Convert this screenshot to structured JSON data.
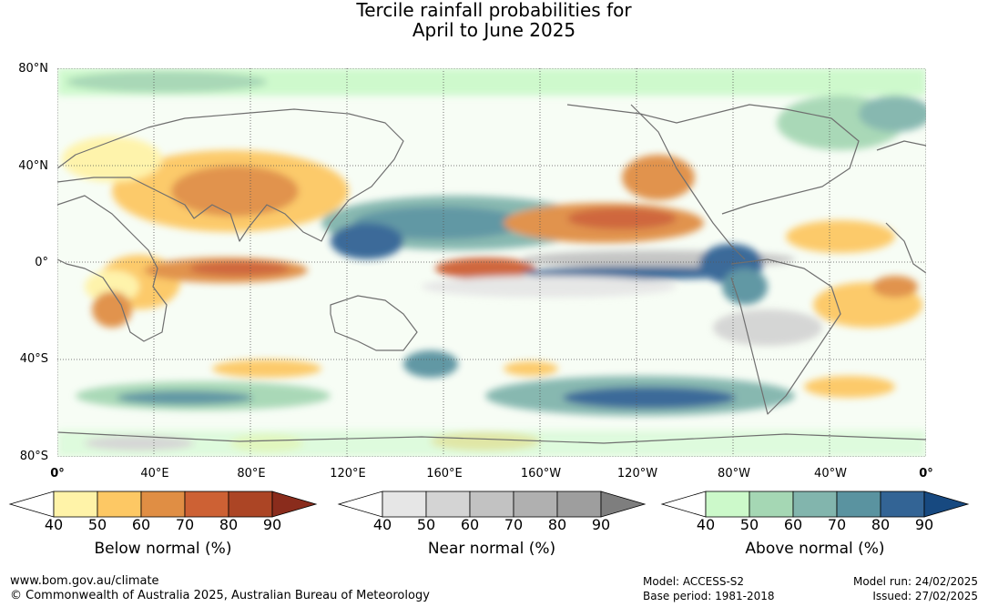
{
  "title_line1": "Tercile rainfall probabilities for",
  "title_line2": "April to June 2025",
  "lat_labels": [
    "80°N",
    "40°N",
    "0°",
    "40°S",
    "80°S"
  ],
  "lon_labels": [
    "0°",
    "40°E",
    "80°E",
    "120°E",
    "160°E",
    "160°W",
    "120°W",
    "80°W",
    "40°W",
    "0°"
  ],
  "legends": [
    {
      "title": "Below normal (%)",
      "ticks": [
        "40",
        "50",
        "60",
        "70",
        "80",
        "90"
      ],
      "colors": [
        "#fff3a8",
        "#fdc864",
        "#e08e44",
        "#cd6134",
        "#ac4525",
        "#8a2c1c"
      ]
    },
    {
      "title": "Near normal (%)",
      "ticks": [
        "40",
        "50",
        "60",
        "70",
        "80",
        "90"
      ],
      "colors": [
        "#e6e6e6",
        "#d4d4d4",
        "#c2c2c2",
        "#b0b0b0",
        "#9e9e9e",
        "#7e7e7e"
      ]
    },
    {
      "title": "Above normal (%)",
      "ticks": [
        "40",
        "50",
        "60",
        "70",
        "80",
        "90"
      ],
      "colors": [
        "#ccf9ca",
        "#a5d7b4",
        "#82b5ad",
        "#5a93a0",
        "#336495",
        "#174980"
      ]
    }
  ],
  "footer": {
    "website": "www.bom.gov.au/climate",
    "copyright": "© Commonwealth of Australia 2025, Australian Bureau of Meteorology",
    "model": "Model: ACCESS-S2",
    "base_period": "Base period: 1981-2018",
    "model_run": "Model run: 24/02/2025",
    "issued": "Issued: 27/02/2025"
  }
}
